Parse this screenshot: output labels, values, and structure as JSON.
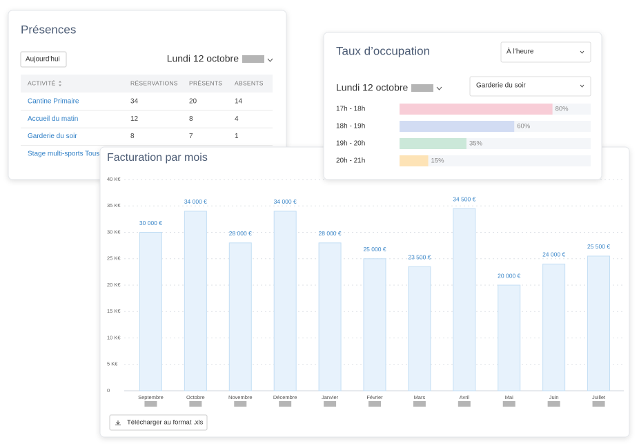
{
  "presences": {
    "title": "Présences",
    "today_button": "Aujourd'hui",
    "date": "Lundi 12 octobre",
    "columns": [
      "ACTIVITÉ",
      "RÉSERVATIONS",
      "PRÉSENTS",
      "ABSENTS"
    ],
    "rows": [
      [
        "Cantine Primaire",
        34,
        20,
        14
      ],
      [
        "Accueil du matin",
        12,
        8,
        4
      ],
      [
        "Garderie du soir",
        8,
        7,
        1
      ],
      [
        "Stage multi-sports Tous"
      ]
    ]
  },
  "chart_data": [
    {
      "type": "bar",
      "horizontal": true,
      "title": "Taux d’occupation",
      "period_select": "À l’heure",
      "date": "Lundi 12 octobre",
      "activity_select": "Garderie du soir",
      "categories": [
        "17h - 18h",
        "18h - 19h",
        "19h - 20h",
        "20h - 21h"
      ],
      "values": [
        80,
        60,
        35,
        15
      ],
      "value_labels": [
        "80%",
        "60%",
        "35%",
        "15%"
      ],
      "colors": [
        "#f8cdd7",
        "#d2dcf3",
        "#cbe8d9",
        "#fde3b6"
      ],
      "xlim": [
        0,
        100
      ]
    },
    {
      "type": "bar",
      "title": "Facturation par mois",
      "categories": [
        "Septembre",
        "Octobre",
        "Novembre",
        "Décembre",
        "Janvier",
        "Février",
        "Mars",
        "Avril",
        "Mai",
        "Juin",
        "Juillet"
      ],
      "values": [
        30000,
        34000,
        28000,
        34000,
        28000,
        25000,
        23500,
        34500,
        20000,
        24000,
        25500
      ],
      "value_labels": [
        "30 000 €",
        "34 000 €",
        "28 000 €",
        "34 000 €",
        "28 000 €",
        "25 000 €",
        "23 500 €",
        "34 500 €",
        "20 000 €",
        "24 000 €",
        "25 500 €"
      ],
      "color": "#e7f2fc",
      "ylim": [
        0,
        40000
      ],
      "yticks": [
        0,
        {
          "value": 5000,
          "label": "5 K€"
        },
        {
          "value": 10000,
          "label": "10 K€"
        },
        {
          "value": 15000,
          "label": "15 K€"
        },
        {
          "value": 20000,
          "label": "20 K€"
        },
        {
          "value": 25000,
          "label": "25 K€"
        },
        {
          "value": 30000,
          "label": "30 K€"
        },
        {
          "value": 35000,
          "label": "35 K€"
        },
        {
          "value": 40000,
          "label": "40 K€"
        }
      ],
      "grid": true,
      "download_button": "Télécharger au format .xls"
    }
  ]
}
